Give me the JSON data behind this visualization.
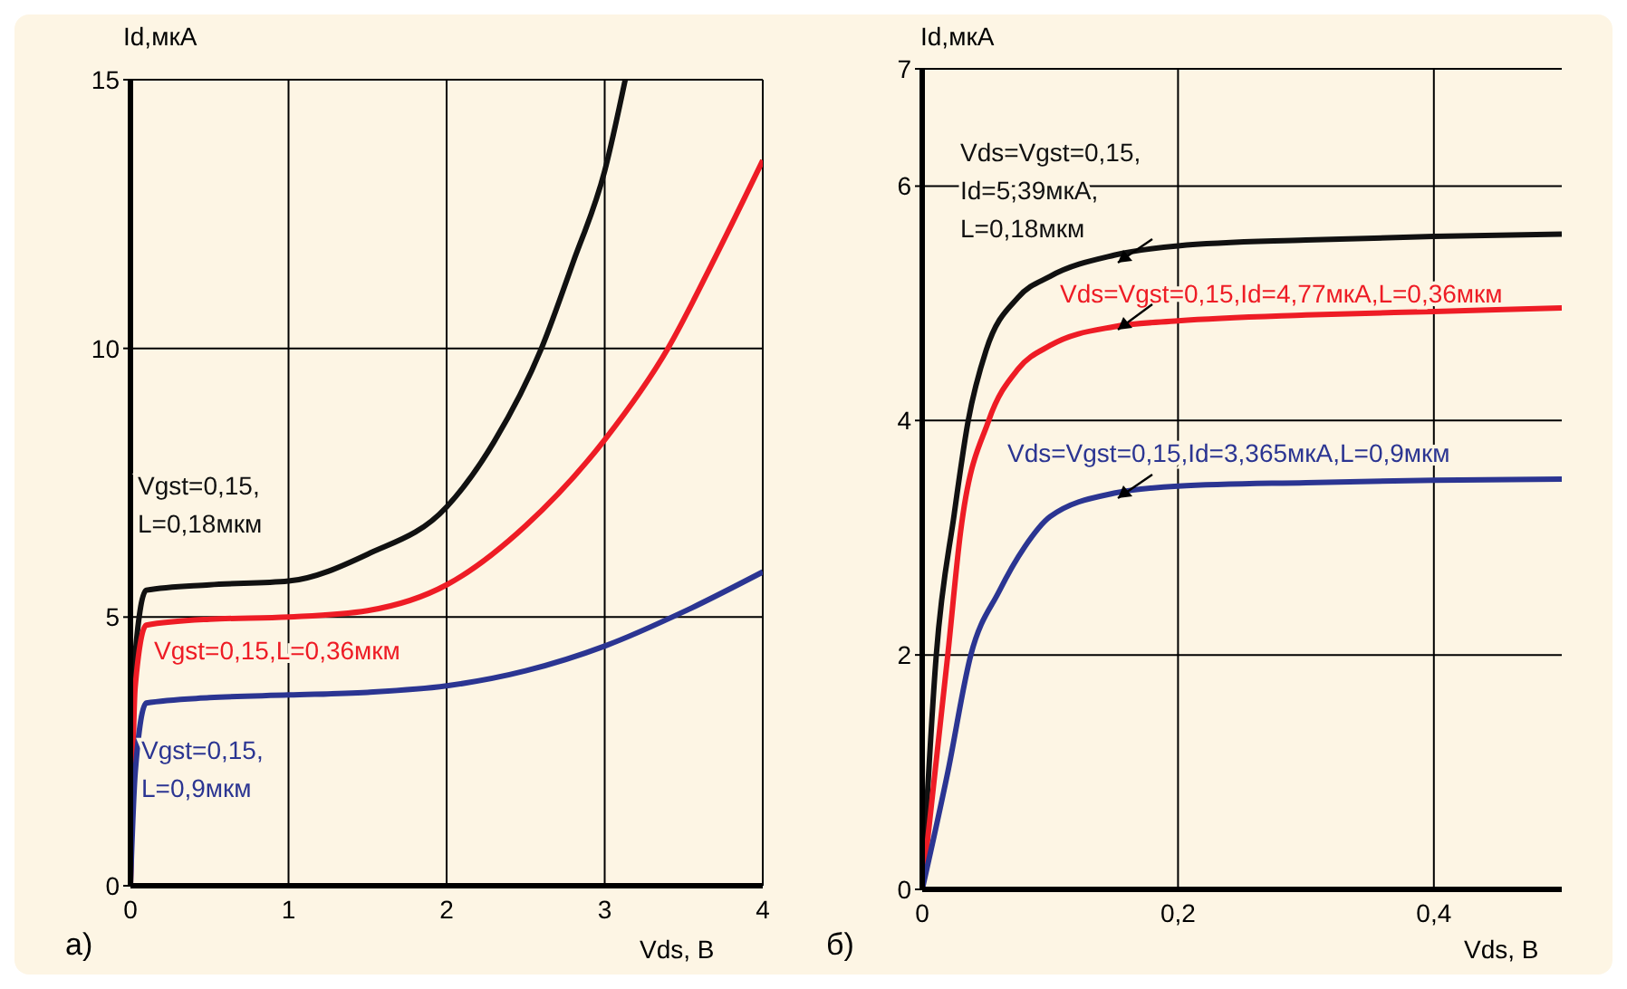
{
  "chart_data": [
    {
      "type": "line",
      "xlabel": "Vds, В",
      "ylabel": "Id,мкА",
      "annotations": [
        "а)"
      ],
      "xlim": [
        0,
        4
      ],
      "ylim": [
        0,
        15
      ],
      "xticks": [
        0,
        1,
        2,
        3,
        4
      ],
      "yticks": [
        0,
        5,
        10,
        15
      ],
      "grid": true,
      "series": [
        {
          "name": "Vgst=0,15, L=0,18мкм",
          "color": "#111111",
          "x": [
            0,
            0.03,
            0.1,
            0.5,
            1,
            1.5,
            2,
            2.3,
            2.6,
            2.8,
            3,
            3.13
          ],
          "values": [
            0,
            4.3,
            5.5,
            5.6,
            5.67,
            6.17,
            7.05,
            8.26,
            10,
            11.6,
            13.3,
            15
          ]
        },
        {
          "name": "Vgst=0,15,L=0,36мкм",
          "color": "#ee1c25",
          "x": [
            0,
            0.03,
            0.1,
            0.5,
            1,
            1.5,
            2,
            2.5,
            3,
            3.4,
            3.7,
            4
          ],
          "values": [
            0,
            3.7,
            4.85,
            4.96,
            5,
            5.12,
            5.6,
            6.7,
            8.3,
            10,
            11.7,
            13.5
          ]
        },
        {
          "name": "Vgst=0,15, L=0,9мкм",
          "color": "#2b3592",
          "x": [
            0,
            0.03,
            0.1,
            0.5,
            1,
            1.5,
            2,
            2.5,
            3,
            3.5,
            4
          ],
          "values": [
            0,
            2.1,
            3.4,
            3.5,
            3.55,
            3.6,
            3.72,
            4,
            4.46,
            5.1,
            5.84
          ]
        }
      ]
    },
    {
      "type": "line",
      "xlabel": "Vds, В",
      "ylabel": "Id,мкА",
      "annotations": [
        "б)"
      ],
      "xlim": [
        0,
        0.5
      ],
      "ylim": [
        0,
        7
      ],
      "xticks": [
        0,
        {
          "value": 0.2,
          "label": "0,2"
        },
        {
          "value": 0.4,
          "label": "0,4"
        }
      ],
      "yticks": [
        0,
        2,
        4,
        6,
        7
      ],
      "grid": true,
      "series": [
        {
          "name": "Vds=Vgst=0,15, Id=5,39мкА, L=0,18мкм",
          "color": "#111111",
          "x": [
            0,
            0.011,
            0.025,
            0.036,
            0.05,
            0.075,
            0.1,
            0.15,
            0.2,
            0.3,
            0.4,
            0.5
          ],
          "values": [
            0,
            2,
            3.2,
            4,
            4.6,
            5.05,
            5.23,
            5.41,
            5.49,
            5.54,
            5.57,
            5.59
          ]
        },
        {
          "name": "Vds=Vgst=0,15,Id=4,77мкА,L=0,36мкм",
          "color": "#ee1c25",
          "x": [
            0,
            0.02,
            0.03,
            0.052,
            0.075,
            0.1,
            0.15,
            0.2,
            0.3,
            0.4,
            0.5
          ],
          "values": [
            0,
            2,
            3.05,
            4,
            4.44,
            4.64,
            4.8,
            4.85,
            4.9,
            4.93,
            4.96
          ]
        },
        {
          "name": "Vds=Vgst=0,15,Id=3,365мкА,L=0,9мкм",
          "color": "#2b3592",
          "x": [
            0,
            0.02,
            0.038,
            0.06,
            0.08,
            0.1,
            0.15,
            0.2,
            0.3,
            0.4,
            0.5
          ],
          "values": [
            0,
            1,
            2,
            2.54,
            2.92,
            3.18,
            3.38,
            3.44,
            3.47,
            3.49,
            3.5
          ]
        }
      ]
    }
  ]
}
